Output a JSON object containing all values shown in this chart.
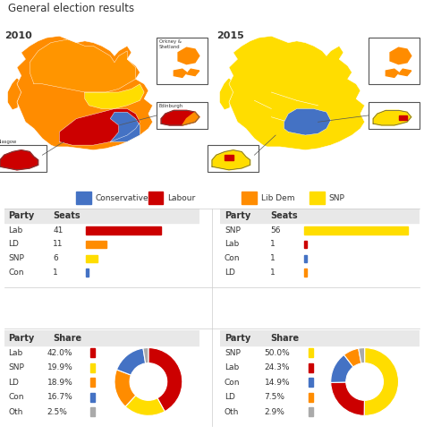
{
  "title": "General election results",
  "year_left": "2010",
  "year_right": "2015",
  "legend_items": [
    {
      "label": "Conservative",
      "color": "#4472C4"
    },
    {
      "label": "Labour",
      "color": "#CC0000"
    },
    {
      "label": "Lib Dem",
      "color": "#FF8C00"
    },
    {
      "label": "SNP",
      "color": "#FFDD00"
    }
  ],
  "seats_2010": {
    "parties": [
      "Lab",
      "LD",
      "SNP",
      "Con"
    ],
    "values": [
      41,
      11,
      6,
      1
    ],
    "colors": [
      "#CC0000",
      "#FF8C00",
      "#FFDD00",
      "#4472C4"
    ],
    "max_val": 59
  },
  "seats_2015": {
    "parties": [
      "SNP",
      "Lab",
      "Con",
      "LD"
    ],
    "values": [
      56,
      1,
      1,
      1
    ],
    "colors": [
      "#FFDD00",
      "#CC0000",
      "#4472C4",
      "#FF8C00"
    ],
    "max_val": 59
  },
  "share_2010": {
    "parties": [
      "Lab",
      "SNP",
      "LD",
      "Con",
      "Oth"
    ],
    "values": [
      42.0,
      19.9,
      18.9,
      16.7,
      2.5
    ],
    "colors": [
      "#CC0000",
      "#FFDD00",
      "#FF8C00",
      "#4472C4",
      "#AAAAAA"
    ]
  },
  "share_2015": {
    "parties": [
      "SNP",
      "Lab",
      "Con",
      "LD",
      "Oth"
    ],
    "values": [
      50.0,
      24.3,
      14.9,
      7.5,
      2.9
    ],
    "colors": [
      "#FFDD00",
      "#CC0000",
      "#4472C4",
      "#FF8C00",
      "#AAAAAA"
    ]
  },
  "bg_color": "#FFFFFF",
  "header_bg": "#E8E8E8",
  "text_color": "#333333"
}
